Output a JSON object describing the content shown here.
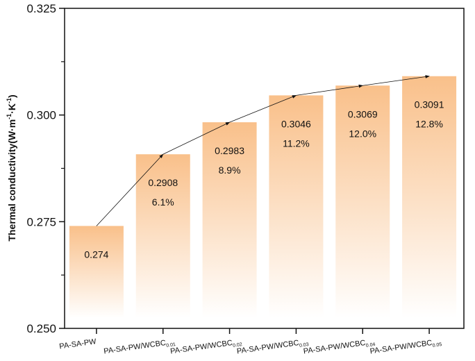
{
  "chart_data": {
    "type": "bar",
    "title": "",
    "xlabel": "",
    "ylabel": "Thermal conductivity(W·m⁻¹·K⁻¹)",
    "ylabel_parts": {
      "main": "Thermal conductivity(W·m",
      "sup1": "-1",
      "mid": "·K",
      "sup2": "-1",
      "end": ")"
    },
    "ylim": [
      0.25,
      0.325
    ],
    "yticks": [
      "0.250",
      "0.275",
      "0.300",
      "0.325"
    ],
    "categories": [
      {
        "base": "PA-SA-PW",
        "sub": ""
      },
      {
        "base": "PA-SA-PW/WCBC",
        "sub": "0.01"
      },
      {
        "base": "PA-SA-PW/WCBC",
        "sub": "0.02"
      },
      {
        "base": "PA-SA-PW/WCBC",
        "sub": "0.03"
      },
      {
        "base": "PA-SA-PW/WCBC",
        "sub": "0.04"
      },
      {
        "base": "PA-SA-PW/WCBC",
        "sub": "0.05"
      }
    ],
    "values": [
      0.274,
      0.2908,
      0.2983,
      0.3046,
      0.3069,
      0.3091
    ],
    "value_labels": [
      "0.274",
      "0.2908",
      "0.2983",
      "0.3046",
      "0.3069",
      "0.3091"
    ],
    "increase_labels": [
      "",
      "6.1%",
      "8.9%",
      "11.2%",
      "12.0%",
      "12.8%"
    ],
    "bar_color": "#f9c08a",
    "trend_line": "arrows connecting bar tops",
    "grid": false
  }
}
